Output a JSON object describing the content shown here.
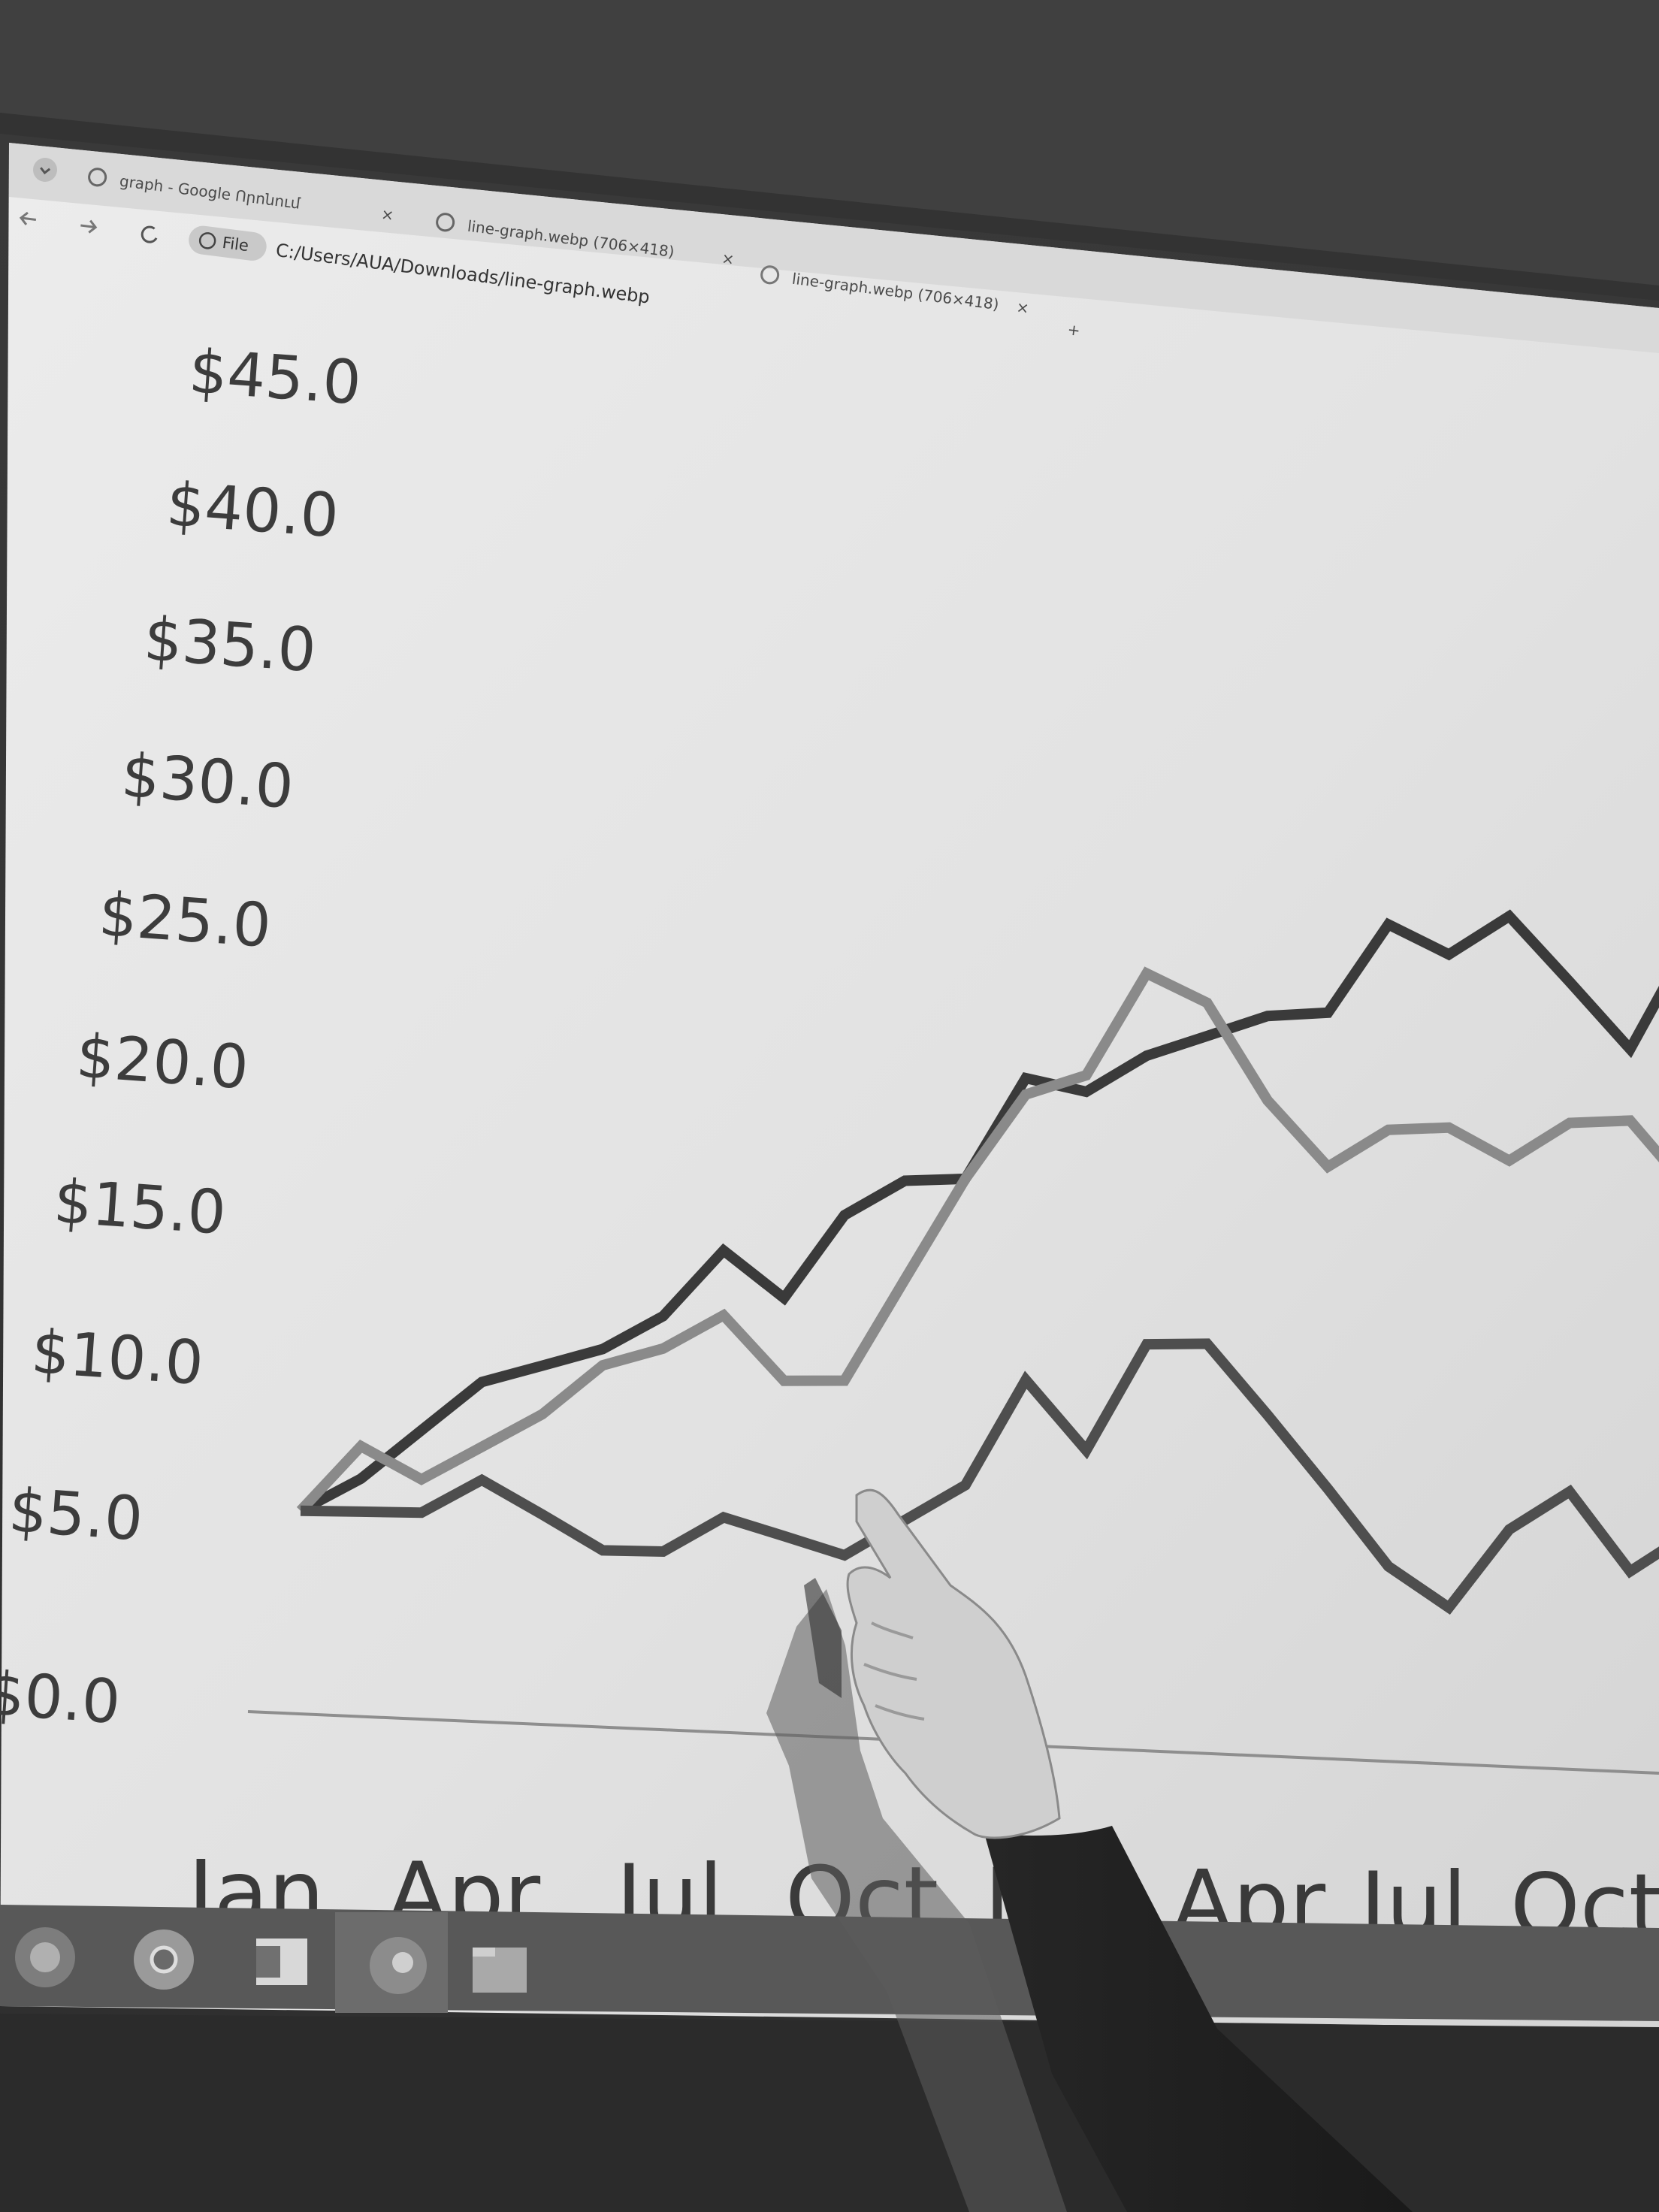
{
  "browser": {
    "tabs": [
      {
        "title": "graph - Google Որոնում"
      },
      {
        "title": "line-graph.webp (706×418)"
      },
      {
        "title": "line-graph.webp (706×418)"
      }
    ],
    "file_chip": "File",
    "url": "C:/Users/AUA/Downloads/line-graph.webp",
    "new_tab": "+",
    "tab_close": "×"
  },
  "taskbar": {
    "apps": [
      {
        "icon": "firefox-icon"
      },
      {
        "icon": "chrome-icon"
      },
      {
        "icon": "word-icon"
      },
      {
        "icon": "contacts-icon"
      },
      {
        "icon": "file-explorer-icon"
      }
    ]
  },
  "chart_data": {
    "type": "line",
    "title": "",
    "xlabel": "",
    "ylabel": "",
    "y_ticks": [
      "$45.0",
      "$40.0",
      "$35.0",
      "$30.0",
      "$25.0",
      "$20.0",
      "$15.0",
      "$10.0",
      "$5.0",
      "$0.0"
    ],
    "y_tick_values": [
      45,
      40,
      35,
      30,
      25,
      20,
      15,
      10,
      5,
      0
    ],
    "x_ticks": [
      "Jan",
      "Apr",
      "Jul",
      "Oct",
      "Jan",
      "Apr",
      "Jul",
      "Oct"
    ],
    "ylim": [
      0,
      45
    ],
    "x": [
      0,
      1,
      2,
      3,
      4,
      5,
      6,
      7,
      8,
      9,
      10,
      11,
      12,
      13,
      14,
      15,
      16,
      17,
      18,
      19,
      20,
      21,
      22,
      23
    ],
    "series": [
      {
        "name": "Series 1",
        "color": "#3a3a3a",
        "values": [
          5,
          6,
          7.5,
          9,
          9.5,
          10,
          11,
          13,
          11.5,
          14,
          15,
          15,
          18,
          17.5,
          18.5,
          19,
          19.5,
          19.5,
          22,
          21,
          22,
          20,
          18,
          21
        ]
      },
      {
        "name": "Series 2",
        "color": "#8a8a8a",
        "values": [
          5,
          7,
          6,
          7,
          8,
          9.5,
          10,
          11,
          9,
          9,
          12,
          15,
          17.5,
          18,
          21,
          20,
          17,
          15,
          16,
          16,
          15,
          16,
          16,
          14
        ]
      },
      {
        "name": "Series 3",
        "color": "#4e4e4e",
        "values": [
          5,
          5,
          5,
          6,
          5,
          4,
          4,
          5,
          4.5,
          4,
          5,
          6,
          9,
          7,
          10,
          10,
          8,
          6,
          4,
          3,
          5,
          6,
          4,
          5
        ]
      }
    ]
  }
}
